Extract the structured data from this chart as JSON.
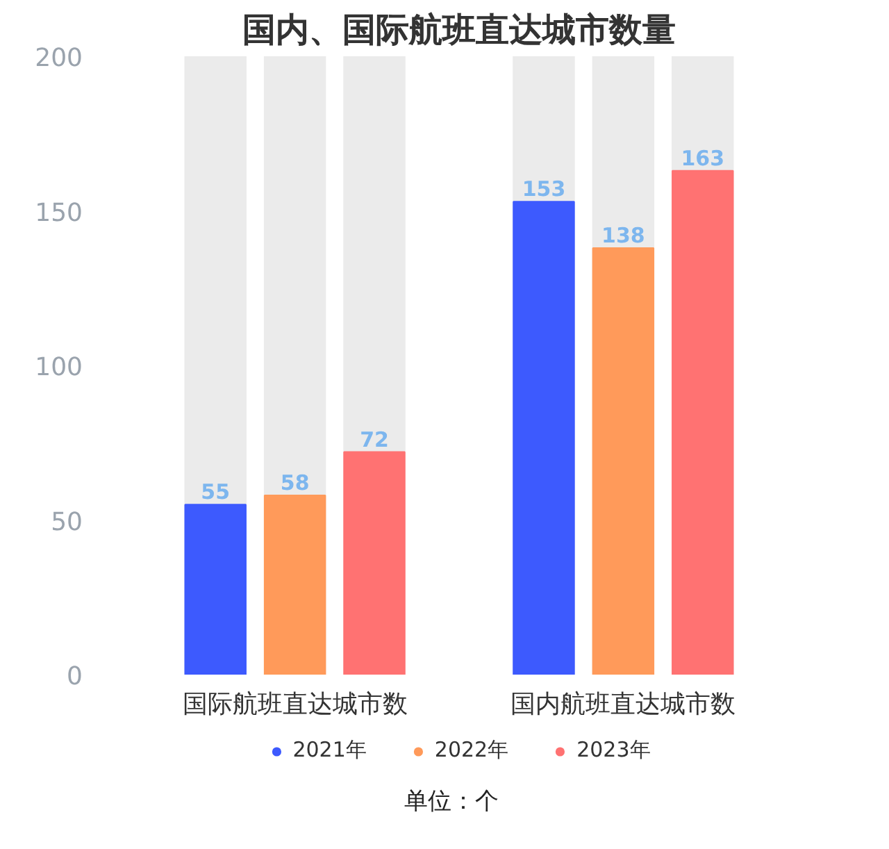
{
  "chart_data": {
    "type": "bar",
    "title": "国内、国际航班直达城市数量",
    "categories": [
      "国际航班直达城市数",
      "国内航班直达城市数"
    ],
    "series": [
      {
        "name": "2021年",
        "color": "#3d5afe",
        "values": [
          55,
          153
        ]
      },
      {
        "name": "2022年",
        "color": "#ff9a5a",
        "values": [
          58,
          138
        ]
      },
      {
        "name": "2023年",
        "color": "#ff7272",
        "values": [
          72,
          163
        ]
      }
    ],
    "ylim": [
      0,
      200
    ],
    "yticks": [
      0,
      50,
      100,
      150,
      200
    ],
    "grid": false,
    "legend": "bottom",
    "data_labels": true,
    "annotations": [
      "单位：个"
    ]
  }
}
